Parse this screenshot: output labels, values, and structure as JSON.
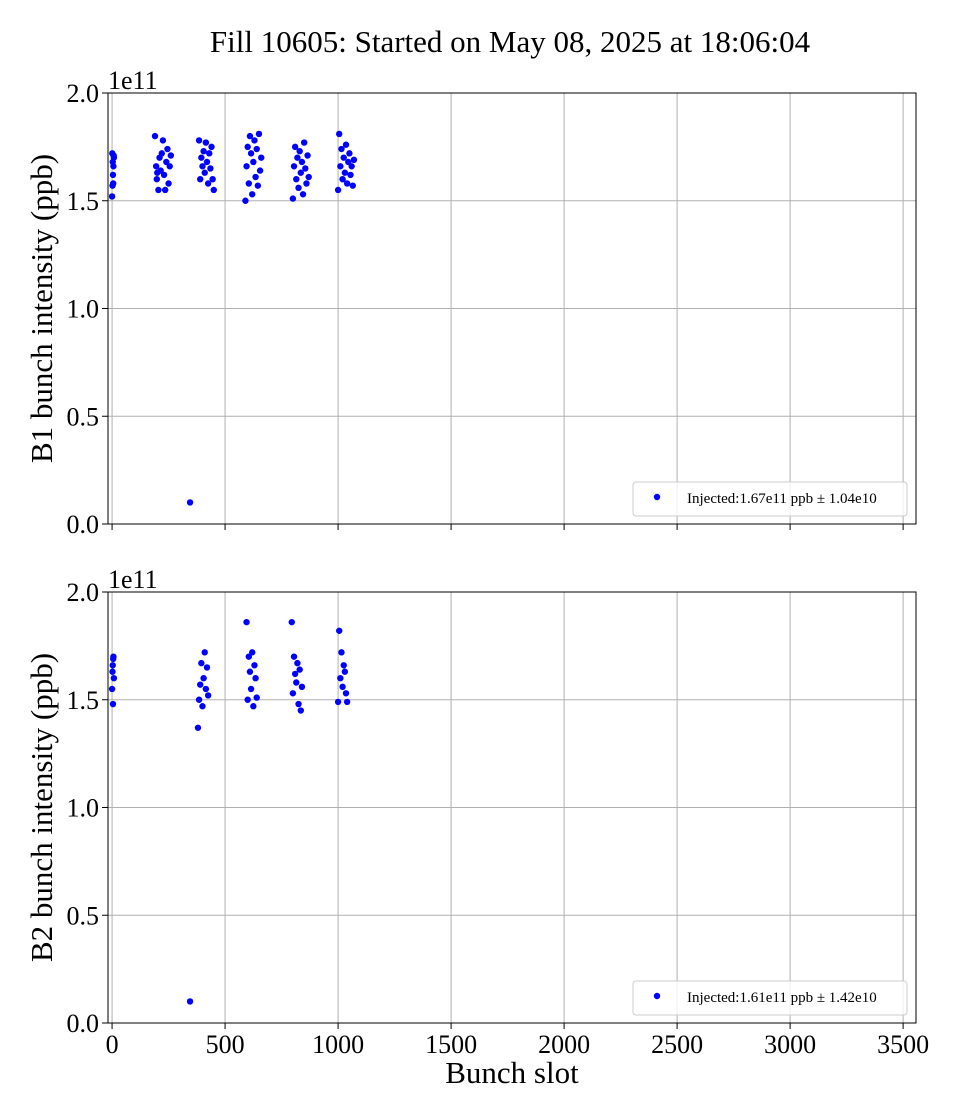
{
  "chart_data": [
    {
      "type": "scatter",
      "title": "Fill 10605: Started on May 08, 2025 at 18:06:04",
      "ylabel": "B1 bunch intensity (ppb)",
      "y_offset_label": "1e11",
      "xlim": [
        -18,
        3557
      ],
      "ylim": [
        0,
        2.0
      ],
      "xticks": [
        0,
        500,
        1000,
        1500,
        2000,
        2500,
        3000,
        3500
      ],
      "xticklabels": false,
      "yticks": [
        {
          "value": 0,
          "label": "0.0"
        },
        0.5,
        {
          "value": 1,
          "label": "1.0"
        },
        1.5,
        {
          "value": 2,
          "label": "2.0"
        }
      ],
      "grid": true,
      "legend": "lower right",
      "series": [
        {
          "name": "Injected:1.67e11 ppb ± 1.04e10",
          "color": "#0000ff",
          "x": [
            0,
            2,
            4,
            6,
            8,
            1,
            3,
            5,
            7,
            190,
            195,
            198,
            205,
            210,
            215,
            220,
            225,
            230,
            235,
            240,
            245,
            250,
            255,
            260,
            200,
            345,
            385,
            390,
            395,
            400,
            405,
            410,
            415,
            420,
            425,
            430,
            435,
            440,
            445,
            450,
            590,
            595,
            600,
            605,
            610,
            615,
            620,
            625,
            630,
            635,
            640,
            645,
            650,
            655,
            660,
            800,
            805,
            810,
            815,
            820,
            825,
            830,
            835,
            840,
            845,
            850,
            855,
            860,
            865,
            870,
            1000,
            1005,
            1010,
            1015,
            1020,
            1025,
            1030,
            1035,
            1040,
            1045,
            1050,
            1055,
            1060,
            1065,
            1070
          ],
          "values": [
            1.52,
            1.57,
            1.62,
            1.66,
            1.7,
            1.72,
            1.68,
            1.58,
            1.71,
            1.8,
            1.66,
            1.6,
            1.55,
            1.7,
            1.64,
            1.72,
            1.78,
            1.62,
            1.55,
            1.68,
            1.74,
            1.58,
            1.66,
            1.71,
            1.63,
            0.1,
            1.78,
            1.6,
            1.7,
            1.66,
            1.73,
            1.63,
            1.77,
            1.68,
            1.58,
            1.72,
            1.65,
            1.75,
            1.6,
            1.55,
            1.5,
            1.66,
            1.75,
            1.58,
            1.8,
            1.72,
            1.53,
            1.68,
            1.78,
            1.61,
            1.74,
            1.57,
            1.81,
            1.64,
            1.7,
            1.51,
            1.66,
            1.75,
            1.6,
            1.7,
            1.56,
            1.73,
            1.63,
            1.68,
            1.53,
            1.77,
            1.65,
            1.58,
            1.71,
            1.61,
            1.55,
            1.81,
            1.66,
            1.74,
            1.6,
            1.7,
            1.63,
            1.76,
            1.58,
            1.68,
            1.72,
            1.62,
            1.66,
            1.57,
            1.69
          ]
        }
      ]
    },
    {
      "type": "scatter",
      "xlabel": "Bunch slot",
      "ylabel": "B2 bunch intensity (ppb)",
      "y_offset_label": "1e11",
      "xlim": [
        -18,
        3557
      ],
      "ylim": [
        0,
        2.0
      ],
      "xticks": [
        0,
        500,
        1000,
        1500,
        2000,
        2500,
        3000,
        3500
      ],
      "xticklabels": true,
      "yticks": [
        {
          "value": 0,
          "label": "0.0"
        },
        0.5,
        {
          "value": 1,
          "label": "1.0"
        },
        1.5,
        {
          "value": 2,
          "label": "2.0"
        }
      ],
      "grid": true,
      "legend": "lower right",
      "series": [
        {
          "name": "Injected:1.61e11 ppb ± 1.42e10",
          "color": "#0000ff",
          "x": [
            0,
            2,
            4,
            6,
            8,
            3,
            5,
            345,
            380,
            385,
            390,
            395,
            400,
            405,
            410,
            415,
            420,
            425,
            595,
            600,
            605,
            610,
            615,
            620,
            625,
            630,
            635,
            640,
            795,
            800,
            805,
            810,
            815,
            820,
            825,
            830,
            835,
            840,
            1000,
            1005,
            1010,
            1015,
            1020,
            1025,
            1030,
            1035,
            1040
          ],
          "values": [
            1.55,
            1.63,
            1.48,
            1.7,
            1.6,
            1.66,
            1.69,
            0.1,
            1.37,
            1.5,
            1.57,
            1.67,
            1.47,
            1.6,
            1.72,
            1.55,
            1.65,
            1.52,
            1.86,
            1.5,
            1.7,
            1.63,
            1.55,
            1.72,
            1.47,
            1.66,
            1.6,
            1.51,
            1.86,
            1.53,
            1.7,
            1.62,
            1.58,
            1.67,
            1.48,
            1.64,
            1.45,
            1.56,
            1.49,
            1.82,
            1.6,
            1.72,
            1.56,
            1.66,
            1.63,
            1.53,
            1.49
          ]
        }
      ]
    }
  ]
}
